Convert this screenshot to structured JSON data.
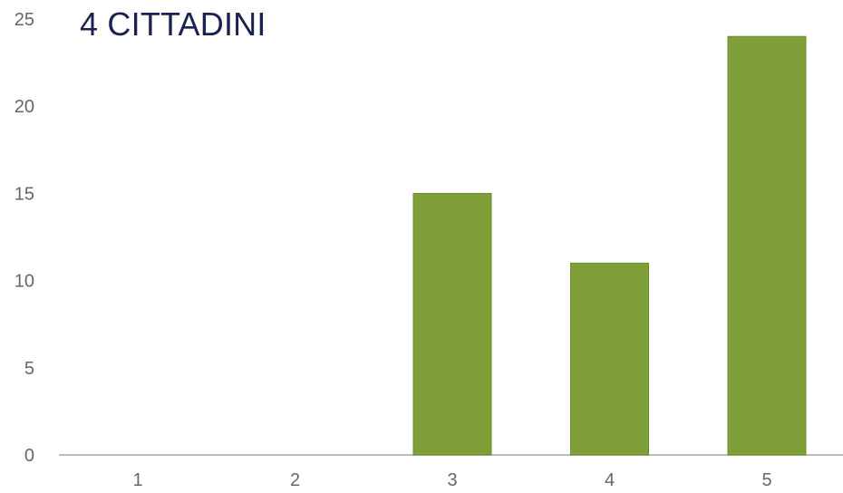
{
  "chart_data": {
    "type": "bar",
    "title": "4 CITTADINI",
    "xlabel": "",
    "ylabel": "",
    "categories": [
      "1",
      "2",
      "3",
      "4",
      "5"
    ],
    "values": [
      0,
      0,
      15,
      11,
      24
    ],
    "ylim": [
      0,
      25
    ],
    "yticks": [
      "0",
      "5",
      "10",
      "15",
      "20",
      "25"
    ],
    "grid": false,
    "legend": "none",
    "colors": {
      "bar": "#7f9f38",
      "bar_border": "#6d8a2e",
      "axis": "#bdbdbd",
      "tick_text": "#666666",
      "title": "#1b2150"
    }
  }
}
